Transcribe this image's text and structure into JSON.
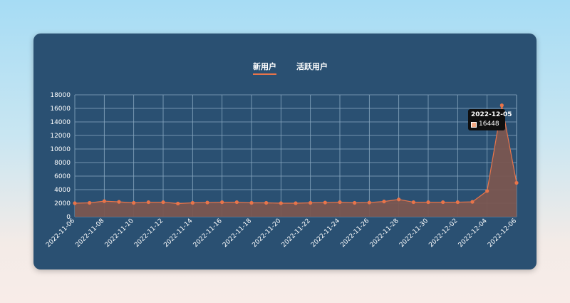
{
  "tabs": [
    {
      "label": "新用户",
      "active": true
    },
    {
      "label": "活跃用户",
      "active": false
    }
  ],
  "colors": {
    "line": "#e8744a",
    "fill": "#7a5650",
    "grid": "#8aa9c2",
    "tooltip_swatch": "#f2a882"
  },
  "tooltip": {
    "date": "2022-12-05",
    "value": "16448"
  },
  "chart_data": {
    "type": "area",
    "title": "",
    "xlabel": "",
    "ylabel": "",
    "ylim": [
      0,
      18000
    ],
    "y_ticks": [
      0,
      2000,
      4000,
      6000,
      8000,
      10000,
      12000,
      14000,
      16000,
      18000
    ],
    "x": [
      "2022-11-06",
      "2022-11-07",
      "2022-11-08",
      "2022-11-09",
      "2022-11-10",
      "2022-11-11",
      "2022-11-12",
      "2022-11-13",
      "2022-11-14",
      "2022-11-15",
      "2022-11-16",
      "2022-11-17",
      "2022-11-18",
      "2022-11-19",
      "2022-11-20",
      "2022-11-21",
      "2022-11-22",
      "2022-11-23",
      "2022-11-24",
      "2022-11-25",
      "2022-11-26",
      "2022-11-27",
      "2022-11-28",
      "2022-11-29",
      "2022-11-30",
      "2022-12-01",
      "2022-12-02",
      "2022-12-03",
      "2022-12-04",
      "2022-12-05",
      "2022-12-06"
    ],
    "x_tick_labels": [
      "2022-11-06",
      "2022-11-08",
      "2022-11-10",
      "2022-11-12",
      "2022-11-14",
      "2022-11-16",
      "2022-11-18",
      "2022-11-20",
      "2022-11-22",
      "2022-11-24",
      "2022-11-26",
      "2022-11-28",
      "2022-11-30",
      "2022-12-02",
      "2022-12-04",
      "2022-12-06"
    ],
    "series": [
      {
        "values": [
          2000,
          2050,
          2300,
          2200,
          2050,
          2150,
          2150,
          1950,
          2050,
          2100,
          2150,
          2150,
          2050,
          2050,
          2000,
          2000,
          2050,
          2100,
          2150,
          2050,
          2100,
          2250,
          2550,
          2150,
          2150,
          2150,
          2150,
          2200,
          3800,
          16448,
          5000
        ]
      }
    ],
    "grid": true,
    "legend": "none"
  }
}
